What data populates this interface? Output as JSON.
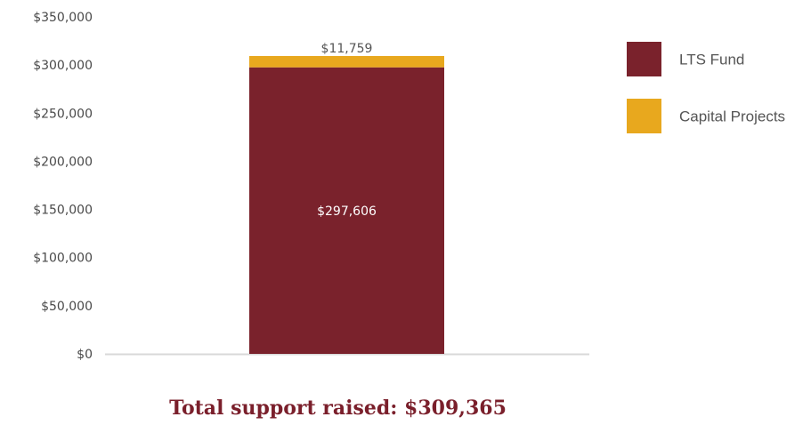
{
  "chart_data": {
    "type": "bar",
    "stacked": true,
    "categories": [
      ""
    ],
    "series": [
      {
        "name": "LTS Fund",
        "values": [
          297606
        ],
        "color": "#7a222c",
        "label": "$297,606",
        "label_color": "#ffffff"
      },
      {
        "name": "Capital Projects",
        "values": [
          11759
        ],
        "color": "#e8a81e",
        "label": "$11,759",
        "label_color": "#555555"
      }
    ],
    "ylim": [
      0,
      350000
    ],
    "yticks": [
      0,
      50000,
      100000,
      150000,
      200000,
      250000,
      300000,
      350000
    ],
    "ytick_labels": [
      "$0",
      "$50,000",
      "$100,000",
      "$150,000",
      "$200,000",
      "$250,000",
      "$300,000",
      "$350,000"
    ],
    "grid": false,
    "legend_position": "top-right",
    "title": "",
    "xlabel": "",
    "ylabel": ""
  },
  "footer": {
    "total_text": "Total support raised: $309,365"
  }
}
